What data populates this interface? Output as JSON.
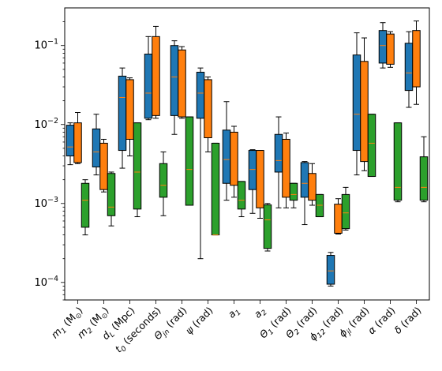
{
  "chart_data": {
    "type": "box",
    "title": "",
    "xlabel": "",
    "ylabel": "",
    "yscale": "log",
    "ylim": [
      6e-05,
      0.3
    ],
    "yticks": [
      {
        "value": 0.0001,
        "base": "10",
        "exp": "−4"
      },
      {
        "value": 0.001,
        "base": "10",
        "exp": "−3"
      },
      {
        "value": 0.01,
        "base": "10",
        "exp": "−2"
      },
      {
        "value": 0.1,
        "base": "10",
        "exp": "−1"
      }
    ],
    "categories": [
      {
        "main": "m",
        "sub": "1",
        "rest": " (M",
        "sun": "⊙",
        "end": ")"
      },
      {
        "main": "m",
        "sub": "2",
        "rest": " (M",
        "sun": "⊙",
        "end": ")"
      },
      {
        "main": "d",
        "sub": "L",
        "rest": " (Mpc)"
      },
      {
        "main": "t",
        "sub": "0",
        "rest": " (seconds)"
      },
      {
        "main": "Θ",
        "sub": "jn",
        "rest": " (rad)"
      },
      {
        "main": "ψ",
        "rest": " (rad)"
      },
      {
        "main": "a",
        "sub": "1"
      },
      {
        "main": "a",
        "sub": "2"
      },
      {
        "main": "Θ",
        "sub": "1",
        "rest": " (rad)"
      },
      {
        "main": "Θ",
        "sub": "2",
        "rest": " (rad)"
      },
      {
        "main": "ϕ",
        "sub": "12",
        "rest": " (rad)"
      },
      {
        "main": "ϕ",
        "sub": "jl",
        "rest": " (rad)"
      },
      {
        "main": "α",
        "rest": " (rad)"
      },
      {
        "main": "δ",
        "rest": " (rad)"
      }
    ],
    "series": [
      {
        "color": "#1f77b4",
        "boxes": [
          {
            "q1": 0.004,
            "median": 0.0052,
            "q3": 0.0098,
            "whislo": 0.0031,
            "whishi": 0.0105
          },
          {
            "q1": 0.0029,
            "median": 0.0045,
            "q3": 0.0088,
            "whislo": 0.0023,
            "whishi": 0.0135
          },
          {
            "q1": 0.0047,
            "median": 0.022,
            "q3": 0.041,
            "whislo": 0.0028,
            "whishi": 0.052
          },
          {
            "q1": 0.012,
            "median": 0.025,
            "q3": 0.078,
            "whislo": 0.0115,
            "whishi": 0.13
          },
          {
            "q1": 0.013,
            "median": 0.04,
            "q3": 0.1,
            "whislo": 0.0075,
            "whishi": 0.115
          },
          {
            "q1": 0.012,
            "median": 0.025,
            "q3": 0.046,
            "whislo": 0.0002,
            "whishi": 0.052
          },
          {
            "q1": 0.0018,
            "median": 0.0036,
            "q3": 0.0085,
            "whislo": 0.0011,
            "whishi": 0.0195
          },
          {
            "q1": 0.0015,
            "median": 0.0027,
            "q3": 0.0047,
            "whislo": 0.00075,
            "whishi": 0.0048
          },
          {
            "q1": 0.0025,
            "median": 0.0035,
            "q3": 0.0075,
            "whislo": 0.00088,
            "whishi": 0.0125
          },
          {
            "q1": 0.0012,
            "median": 0.0018,
            "q3": 0.0033,
            "whislo": 0.00054,
            "whishi": 0.0034
          },
          {
            "q1": 9.5e-05,
            "median": 0.00014,
            "q3": 0.00022,
            "whislo": 9e-05,
            "whishi": 0.00024
          },
          {
            "q1": 0.0047,
            "median": 0.0135,
            "q3": 0.076,
            "whislo": 0.0023,
            "whishi": 0.145
          },
          {
            "q1": 0.06,
            "median": 0.1,
            "q3": 0.155,
            "whislo": 0.052,
            "whishi": 0.195
          },
          {
            "q1": 0.027,
            "median": 0.045,
            "q3": 0.107,
            "whislo": 0.0165,
            "whishi": 0.15
          }
        ]
      },
      {
        "color": "#ff7f0e",
        "boxes": [
          {
            "q1": 0.0033,
            "median": 0.0052,
            "q3": 0.0105,
            "whislo": 0.0032,
            "whishi": 0.0142
          },
          {
            "q1": 0.0015,
            "median": 0.0035,
            "q3": 0.0058,
            "whislo": 0.0014,
            "whishi": 0.0065
          },
          {
            "q1": 0.0065,
            "median": 0.022,
            "q3": 0.037,
            "whislo": 0.004,
            "whishi": 0.039
          },
          {
            "q1": 0.013,
            "median": 0.04,
            "q3": 0.13,
            "whislo": 0.012,
            "whishi": 0.175
          },
          {
            "q1": 0.0125,
            "median": 0.035,
            "q3": 0.088,
            "whislo": 0.012,
            "whishi": 0.097
          },
          {
            "q1": 0.0068,
            "median": 0.023,
            "q3": 0.037,
            "whislo": 0.0045,
            "whishi": 0.04
          },
          {
            "q1": 0.0017,
            "median": 0.0033,
            "q3": 0.008,
            "whislo": 0.0012,
            "whishi": 0.0095
          },
          {
            "q1": 0.00088,
            "median": 0.0026,
            "q3": 0.0047,
            "whislo": 0.00065,
            "whishi": 0.0047
          },
          {
            "q1": 0.0012,
            "median": 0.0035,
            "q3": 0.0065,
            "whislo": 0.00088,
            "whishi": 0.0078
          },
          {
            "q1": 0.0011,
            "median": 0.0016,
            "q3": 0.0024,
            "whislo": 0.00095,
            "whishi": 0.0032
          },
          {
            "q1": 0.00042,
            "median": 0.00065,
            "q3": 0.00098,
            "whislo": 0.00041,
            "whishi": 0.00115
          },
          {
            "q1": 0.0034,
            "median": 0.023,
            "q3": 0.063,
            "whislo": 0.0026,
            "whishi": 0.125
          },
          {
            "q1": 0.058,
            "median": 0.09,
            "q3": 0.14,
            "whislo": 0.053,
            "whishi": 0.15
          },
          {
            "q1": 0.03,
            "median": 0.07,
            "q3": 0.155,
            "whislo": 0.018,
            "whishi": 0.205
          }
        ]
      },
      {
        "color": "#2ca02c",
        "boxes": [
          {
            "q1": 0.0005,
            "median": 0.0011,
            "q3": 0.0018,
            "whislo": 0.0004,
            "whishi": 0.002
          },
          {
            "q1": 0.0007,
            "median": 0.0009,
            "q3": 0.0024,
            "whislo": 0.00052,
            "whishi": 0.0025
          },
          {
            "q1": 0.00085,
            "median": 0.0025,
            "q3": 0.0105,
            "whislo": 0.00068,
            "whishi": 0.0105
          },
          {
            "q1": 0.0012,
            "median": 0.0017,
            "q3": 0.0032,
            "whislo": 0.0007,
            "whishi": 0.0045
          },
          {
            "q1": 0.00095,
            "median": 0.0027,
            "q3": 0.0125,
            "whislo": 0.00095,
            "whishi": 0.0125
          },
          {
            "q1": 0.0004,
            "median": 0.0004,
            "q3": 0.0058,
            "whislo": 0.0004,
            "whishi": 0.0058
          },
          {
            "q1": 0.00085,
            "median": 0.0011,
            "q3": 0.0019,
            "whislo": 0.00068,
            "whishi": 0.0019
          },
          {
            "q1": 0.00027,
            "median": 0.00062,
            "q3": 0.00096,
            "whislo": 0.00025,
            "whishi": 0.001
          },
          {
            "q1": 0.0011,
            "median": 0.0013,
            "q3": 0.0018,
            "whislo": 0.00088,
            "whishi": 0.0018
          },
          {
            "q1": 0.00068,
            "median": 0.00095,
            "q3": 0.0013,
            "whislo": 0.00068,
            "whishi": 0.0013
          },
          {
            "q1": 0.00048,
            "median": 0.00076,
            "q3": 0.0013,
            "whislo": 0.00046,
            "whishi": 0.0016
          },
          {
            "q1": 0.0022,
            "median": 0.0058,
            "q3": 0.0135,
            "whislo": 0.0022,
            "whishi": 0.0135
          },
          {
            "q1": 0.0011,
            "median": 0.0016,
            "q3": 0.0105,
            "whislo": 0.00105,
            "whishi": 0.0105
          },
          {
            "q1": 0.0011,
            "median": 0.0016,
            "q3": 0.0039,
            "whislo": 0.00105,
            "whishi": 0.007
          }
        ]
      }
    ]
  }
}
